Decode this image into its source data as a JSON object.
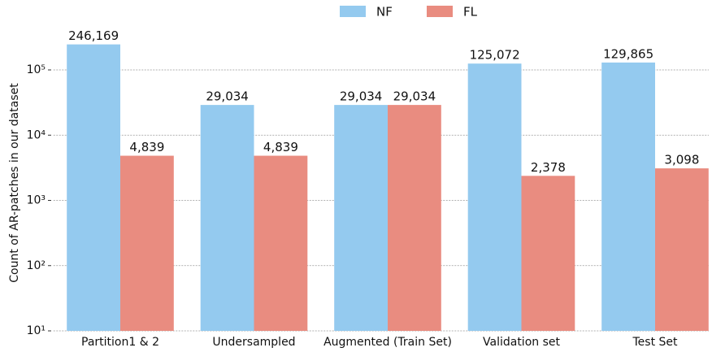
{
  "chart_data": {
    "type": "bar",
    "log_scale": true,
    "grid": true,
    "legend": "top",
    "ylabel": "Count of AR-patches in our dataset",
    "categories": [
      "Partition1 & 2",
      "Undersampled",
      "Augmented (Train Set)",
      "Validation set",
      "Test Set"
    ],
    "series": [
      {
        "name": "NF",
        "color": "#94caef",
        "values": [
          246169,
          29034,
          29034,
          125072,
          129865
        ],
        "value_labels": [
          "246,169",
          "29,034",
          "29,034",
          "125,072",
          "129,865"
        ]
      },
      {
        "name": "FL",
        "color": "#e98c80",
        "values": [
          4839,
          4839,
          29034,
          2378,
          3098
        ],
        "value_labels": [
          "4,839",
          "4,839",
          "29,034",
          "2,378",
          "3,098"
        ]
      }
    ],
    "ylim": [
      10,
      400000
    ],
    "yticks": [
      {
        "value": 10,
        "label": "10¹"
      },
      {
        "value": 100,
        "label": "10²"
      },
      {
        "value": 1000,
        "label": "10³"
      },
      {
        "value": 10000,
        "label": "10⁴"
      },
      {
        "value": 100000,
        "label": "10⁵"
      }
    ]
  }
}
